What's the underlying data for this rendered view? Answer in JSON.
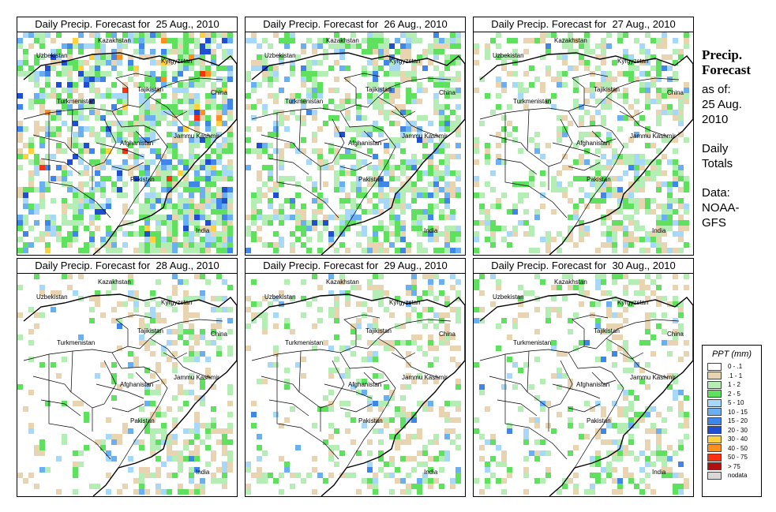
{
  "panels": [
    {
      "title": "Daily Precip. Forecast for  25 Aug., 2010",
      "date": "25 Aug., 2010",
      "intensity": "high"
    },
    {
      "title": "Daily Precip. Forecast for  26 Aug., 2010",
      "date": "26 Aug., 2010",
      "intensity": "medium"
    },
    {
      "title": "Daily Precip. Forecast for  27 Aug., 2010",
      "date": "27 Aug., 2010",
      "intensity": "medium-low"
    },
    {
      "title": "Daily Precip. Forecast for  28 Aug., 2010",
      "date": "28 Aug., 2010",
      "intensity": "low"
    },
    {
      "title": "Daily Precip. Forecast for  29 Aug., 2010",
      "date": "29 Aug., 2010",
      "intensity": "low"
    },
    {
      "title": "Daily Precip. Forecast for  30 Aug., 2010",
      "date": "30 Aug., 2010",
      "intensity": "low"
    }
  ],
  "map_labels": [
    "Kazakhstan",
    "Uzbekistan",
    "Kyrgyzstan",
    "Tajikistan",
    "China",
    "Turkmenistan",
    "Afghanistan",
    "Jammu Kashmir",
    "Pakistan",
    "India"
  ],
  "side_info": {
    "title_line1": "Precip.",
    "title_line2": "Forecast",
    "asof_line1": "as of:",
    "asof_line2": "25 Aug.",
    "asof_line3": "2010",
    "totals_line1": "Daily",
    "totals_line2": "Totals",
    "data_line1": "Data:",
    "data_line2": "NOAA-",
    "data_line3": "GFS"
  },
  "legend": {
    "title": "PPT (mm)",
    "items": [
      {
        "label": "0 - .1",
        "color": "#ffffff"
      },
      {
        "label": ".1 - 1",
        "color": "#e8d4b0"
      },
      {
        "label": "1 - 2",
        "color": "#b4eeb4"
      },
      {
        "label": "2 - 5",
        "color": "#5fe05f"
      },
      {
        "label": "5 - 10",
        "color": "#a8d8f8"
      },
      {
        "label": "10 - 15",
        "color": "#6ab0f0"
      },
      {
        "label": "15 - 20",
        "color": "#3f86e8"
      },
      {
        "label": "20 - 30",
        "color": "#1f4fd0"
      },
      {
        "label": "30 - 40",
        "color": "#ffd040"
      },
      {
        "label": "40 - 50",
        "color": "#ff9020"
      },
      {
        "label": "50 - 75",
        "color": "#ff3010"
      },
      {
        "label": "> 75",
        "color": "#b01010"
      },
      {
        "label": "nodata",
        "color": "#d8d8d8"
      }
    ]
  }
}
